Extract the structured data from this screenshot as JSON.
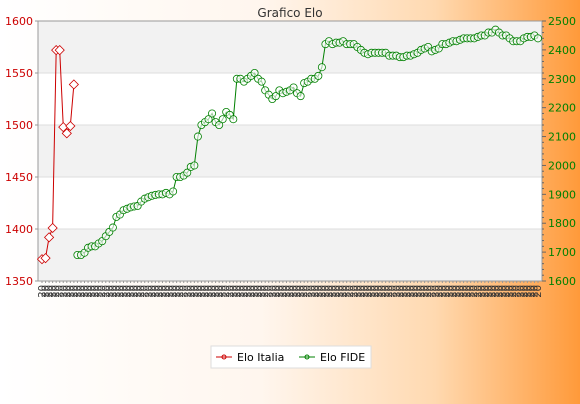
{
  "chart_data": {
    "type": "line",
    "title": "Grafico Elo",
    "left_axis": {
      "min": 1350,
      "max": 1600,
      "ticks": [
        1350,
        1400,
        1450,
        1500,
        1550,
        1600
      ],
      "color": "#cc0000"
    },
    "right_axis": {
      "min": 1600,
      "max": 2500,
      "ticks": [
        1600,
        1700,
        1800,
        1900,
        2000,
        2100,
        2200,
        2300,
        2400,
        2500
      ],
      "color": "#008000"
    },
    "grid": true,
    "legend_position": "bottom-center",
    "x_label_prefix": "20",
    "series": [
      {
        "name": "Elo Italia",
        "axis": "left",
        "color": "#cc0000",
        "values": [
          1371,
          1372,
          1392,
          1401,
          1572,
          1572,
          1498,
          1492,
          1499,
          1539
        ]
      },
      {
        "name": "Elo FIDE",
        "axis": "right",
        "color": "#008000",
        "start_index": 10,
        "values": [
          1690,
          1690,
          1698,
          1715,
          1720,
          1720,
          1730,
          1738,
          1755,
          1770,
          1785,
          1822,
          1830,
          1845,
          1850,
          1855,
          1858,
          1860,
          1875,
          1885,
          1890,
          1895,
          1898,
          1900,
          1900,
          1905,
          1900,
          1910,
          1960,
          1960,
          1965,
          1975,
          1995,
          2000,
          2100,
          2140,
          2150,
          2160,
          2180,
          2150,
          2140,
          2160,
          2185,
          2175,
          2160,
          2300,
          2300,
          2290,
          2300,
          2310,
          2320,
          2300,
          2290,
          2260,
          2245,
          2230,
          2240,
          2260,
          2250,
          2255,
          2260,
          2270,
          2250,
          2240,
          2285,
          2290,
          2300,
          2300,
          2310,
          2340,
          2420,
          2430,
          2420,
          2425,
          2425,
          2430,
          2420,
          2420,
          2420,
          2410,
          2400,
          2390,
          2385,
          2390,
          2390,
          2390,
          2390,
          2390,
          2380,
          2380,
          2380,
          2375,
          2375,
          2380,
          2380,
          2385,
          2390,
          2400,
          2405,
          2410,
          2395,
          2400,
          2405,
          2420,
          2420,
          2425,
          2430,
          2430,
          2435,
          2440,
          2440,
          2440,
          2440,
          2445,
          2450,
          2450,
          2460,
          2460,
          2470,
          2460,
          2450,
          2450,
          2440,
          2430,
          2430,
          2430,
          2440,
          2445,
          2445,
          2450,
          2440
        ]
      }
    ]
  }
}
